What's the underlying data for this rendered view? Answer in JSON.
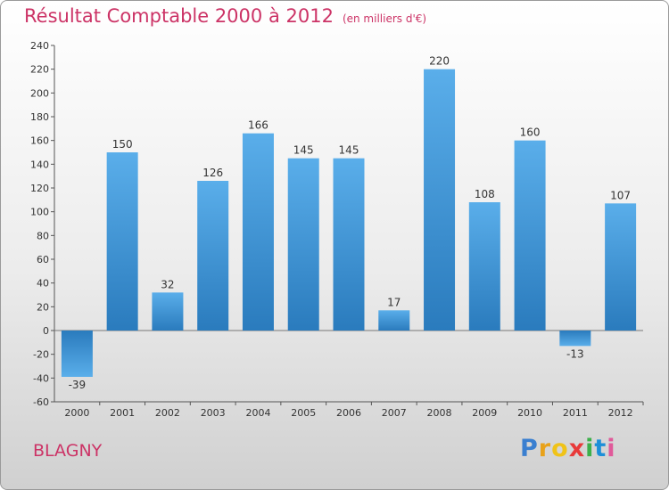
{
  "header": {
    "title": "Résultat Comptable 2000 à 2012",
    "subtitle": "(en milliers d'€)"
  },
  "footer": {
    "city": "BLAGNY",
    "logo_letters": [
      "P",
      "r",
      "o",
      "x",
      "i",
      "t",
      "i"
    ]
  },
  "colors": {
    "title": "#cc3366",
    "bar_light": "#5aaeea",
    "bar_dark": "#2a7bbd",
    "logo": [
      "#3a7fd0",
      "#e8a21a",
      "#f0c318",
      "#e83a3a",
      "#3cb04a",
      "#1c8fd8",
      "#e05a9a"
    ]
  },
  "chart_data": {
    "type": "bar",
    "title": "Résultat Comptable 2000 à 2012",
    "subtitle": "(en milliers d'€)",
    "xlabel": "",
    "ylabel": "",
    "categories": [
      "2000",
      "2001",
      "2002",
      "2003",
      "2004",
      "2005",
      "2006",
      "2007",
      "2008",
      "2009",
      "2010",
      "2011",
      "2012"
    ],
    "values": [
      -39,
      150,
      32,
      126,
      166,
      145,
      145,
      17,
      220,
      108,
      160,
      -13,
      107
    ],
    "labels": [
      "-39",
      "150",
      "32",
      "126",
      "166",
      "145",
      "145",
      "17",
      "220",
      "108",
      "160",
      "-13",
      "107"
    ],
    "ylim": [
      -60,
      240
    ],
    "yticks": [
      -60,
      -40,
      -20,
      0,
      20,
      40,
      60,
      80,
      100,
      120,
      140,
      160,
      180,
      200,
      220,
      240
    ],
    "grid": false
  }
}
